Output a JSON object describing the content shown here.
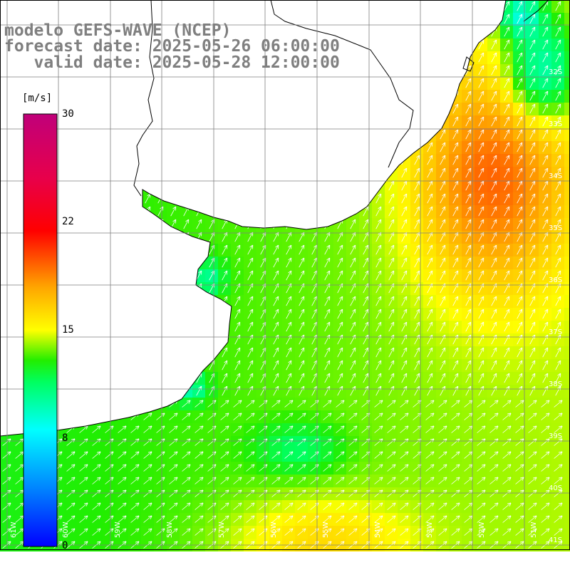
{
  "title": {
    "line1": "modelo GEFS-WAVE (NCEP)",
    "line2": "forecast date: 2025-05-26 06:00:00",
    "line3": "   valid date: 2025-05-28 12:00:00"
  },
  "colorbar": {
    "unit": "[m/s]",
    "min": 0,
    "max": 30,
    "labels": [
      {
        "value": 30,
        "text": "30"
      },
      {
        "value": 22,
        "text": "22"
      },
      {
        "value": 15,
        "text": "15"
      },
      {
        "value": 8,
        "text": "8"
      },
      {
        "value": 0,
        "text": "0"
      }
    ]
  },
  "map": {
    "variable": "wind speed",
    "lat_labels": [
      "32S",
      "33S",
      "34S",
      "35S",
      "36S",
      "37S",
      "38S",
      "39S",
      "40S",
      "41S"
    ],
    "lon_labels": [
      "61W",
      "60W",
      "59W",
      "58W",
      "57W",
      "56W",
      "55W",
      "54W",
      "53W",
      "52W",
      "51W"
    ]
  },
  "colors": {
    "title": "#7f7f7f",
    "grid": "#7f7f7f",
    "coast": "#000000",
    "land": "#ffffff"
  }
}
